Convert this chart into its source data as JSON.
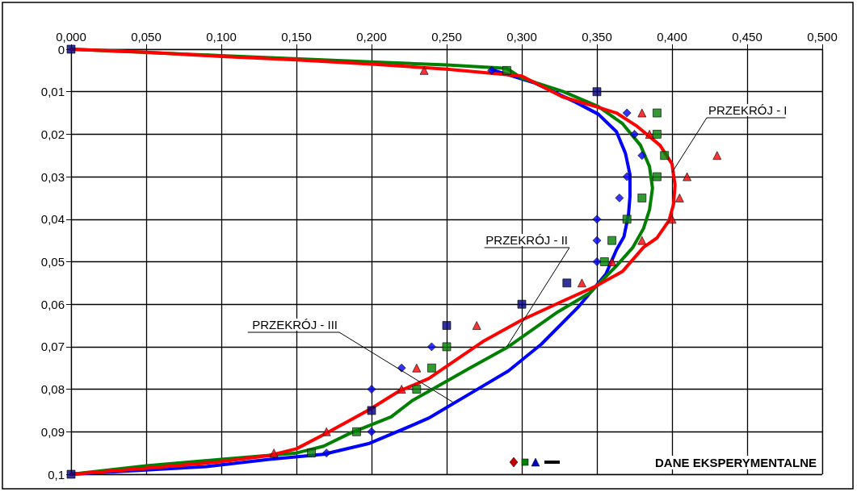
{
  "chart_data": {
    "type": "line",
    "xlim": [
      0,
      0.5
    ],
    "xticks": [
      {
        "value": 0,
        "label": "0,000"
      },
      {
        "value": 0.05,
        "label": "0,050"
      },
      {
        "value": 0.1,
        "label": "0,100"
      },
      {
        "value": 0.15,
        "label": "0,150"
      },
      {
        "value": 0.2,
        "label": "0,200"
      },
      {
        "value": 0.25,
        "label": "0,250"
      },
      {
        "value": 0.3,
        "label": "0,300"
      },
      {
        "value": 0.35,
        "label": "0,350"
      },
      {
        "value": 0.4,
        "label": "0,400"
      },
      {
        "value": 0.45,
        "label": "0,450"
      },
      {
        "value": 0.5,
        "label": "0,500"
      }
    ],
    "ylim": [
      0.1,
      0
    ],
    "yticks": [
      {
        "value": 0,
        "label": "0"
      },
      {
        "value": 0.01,
        "label": "0,01"
      },
      {
        "value": 0.02,
        "label": "0,02"
      },
      {
        "value": 0.03,
        "label": "0,03"
      },
      {
        "value": 0.04,
        "label": "0,04"
      },
      {
        "value": 0.05,
        "label": "0,05"
      },
      {
        "value": 0.06,
        "label": "0,06"
      },
      {
        "value": 0.07,
        "label": "0,07"
      },
      {
        "value": 0.08,
        "label": "0,08"
      },
      {
        "value": 0.09,
        "label": "0,09"
      },
      {
        "value": 0.1,
        "label": "0,1"
      }
    ],
    "grid": true,
    "series": [
      {
        "color": "#0000ff",
        "marker": "none",
        "x": [
          0.28,
          0.309,
          0.336,
          0.351,
          0.363,
          0.369,
          0.372,
          0.372,
          0.371,
          0.368,
          0.363,
          0.356,
          0.338,
          0.313,
          0.291,
          0.27,
          0.238,
          0.227,
          0.198,
          0.168,
          0.132,
          0.09,
          0
        ],
        "values": [
          0.0048,
          0.008,
          0.0125,
          0.0153,
          0.0194,
          0.0245,
          0.0295,
          0.0347,
          0.039,
          0.0441,
          0.0472,
          0.0529,
          0.0605,
          0.0694,
          0.0757,
          0.0801,
          0.0868,
          0.0885,
          0.0928,
          0.0953,
          0.0965,
          0.0982,
          0.1
        ]
      },
      {
        "color": "#008000",
        "marker": "none",
        "x": [
          0,
          0.1,
          0.2,
          0.25,
          0.29,
          0.3,
          0.327,
          0.351,
          0.367,
          0.379,
          0.385,
          0.387,
          0.385,
          0.381,
          0.374,
          0.363,
          0.345,
          0.324,
          0.291,
          0.265,
          0.238,
          0.227,
          0.213,
          0.186,
          0.168,
          0.15,
          0.1,
          0.05,
          0
        ],
        "values": [
          0,
          0.0015,
          0.003,
          0.0037,
          0.0045,
          0.0068,
          0.0099,
          0.0135,
          0.0175,
          0.0226,
          0.0276,
          0.0327,
          0.0378,
          0.0422,
          0.0466,
          0.051,
          0.0574,
          0.0618,
          0.07,
          0.0751,
          0.0805,
          0.0827,
          0.0865,
          0.0903,
          0.0934,
          0.095,
          0.0965,
          0.098,
          0.1
        ]
      },
      {
        "color": "#ff0000",
        "marker": "none",
        "x": [
          0,
          0.05,
          0.1,
          0.15,
          0.2,
          0.25,
          0.3,
          0.327,
          0.351,
          0.363,
          0.377,
          0.392,
          0.4,
          0.402,
          0.401,
          0.398,
          0.39,
          0.381,
          0.367,
          0.349,
          0.327,
          0.3,
          0.274,
          0.238,
          0.218,
          0.198,
          0.17,
          0.15,
          0.132,
          0.096,
          0.042,
          0
        ],
        "values": [
          0,
          0.0007,
          0.0017,
          0.0025,
          0.0035,
          0.0047,
          0.0063,
          0.0112,
          0.0137,
          0.015,
          0.0182,
          0.0226,
          0.027,
          0.032,
          0.0365,
          0.0403,
          0.0444,
          0.0466,
          0.0523,
          0.0558,
          0.0593,
          0.0637,
          0.0688,
          0.0775,
          0.0805,
          0.0849,
          0.0903,
          0.094,
          0.0956,
          0.0972,
          0.0988,
          0.1
        ]
      },
      {
        "type": "scatter",
        "color": "#0000ff",
        "marker": "diamond",
        "x": [
          0.28,
          0.37,
          0.375,
          0.38,
          0.37,
          0.365,
          0.35,
          0.35,
          0.35,
          0.24,
          0.22,
          0.2,
          0.2,
          0.17
        ],
        "values": [
          0.005,
          0.015,
          0.02,
          0.025,
          0.03,
          0.035,
          0.04,
          0.045,
          0.05,
          0.07,
          0.075,
          0.08,
          0.09,
          0.095
        ]
      },
      {
        "type": "scatter",
        "color": "#000080",
        "marker": "square",
        "x": [
          0,
          0.35,
          0.33,
          0.3,
          0.25,
          0.2,
          0
        ],
        "values": [
          0,
          0.01,
          0.055,
          0.06,
          0.065,
          0.085,
          0.1
        ]
      },
      {
        "type": "scatter",
        "color": "#008000",
        "marker": "square",
        "x": [
          0.29,
          0.39,
          0.39,
          0.395,
          0.39,
          0.38,
          0.37,
          0.36,
          0.355,
          0.25,
          0.24,
          0.23,
          0.19,
          0.16
        ],
        "values": [
          0.005,
          0.015,
          0.02,
          0.025,
          0.03,
          0.035,
          0.04,
          0.045,
          0.05,
          0.07,
          0.075,
          0.08,
          0.09,
          0.095
        ]
      },
      {
        "type": "scatter",
        "color": "#ff0000",
        "marker": "triangle",
        "x": [
          0.235,
          0.38,
          0.385,
          0.43,
          0.41,
          0.405,
          0.4,
          0.38,
          0.36,
          0.34,
          0.27,
          0.23,
          0.22,
          0.17,
          0.135
        ],
        "values": [
          0.005,
          0.015,
          0.02,
          0.025,
          0.03,
          0.035,
          0.04,
          0.045,
          0.05,
          0.055,
          0.065,
          0.075,
          0.08,
          0.09,
          0.095
        ]
      }
    ],
    "annotations": [
      {
        "text": "PRZEKRÓJ - I",
        "x": 0.4,
        "y": 0.029
      },
      {
        "text": "PRZEKRÓJ - II",
        "x": 0.29,
        "y": 0.07
      },
      {
        "text": "PRZEKRÓJ - III",
        "x": 0.254,
        "y": 0.083
      },
      "DANE EKSPERYMENTALNE"
    ]
  }
}
